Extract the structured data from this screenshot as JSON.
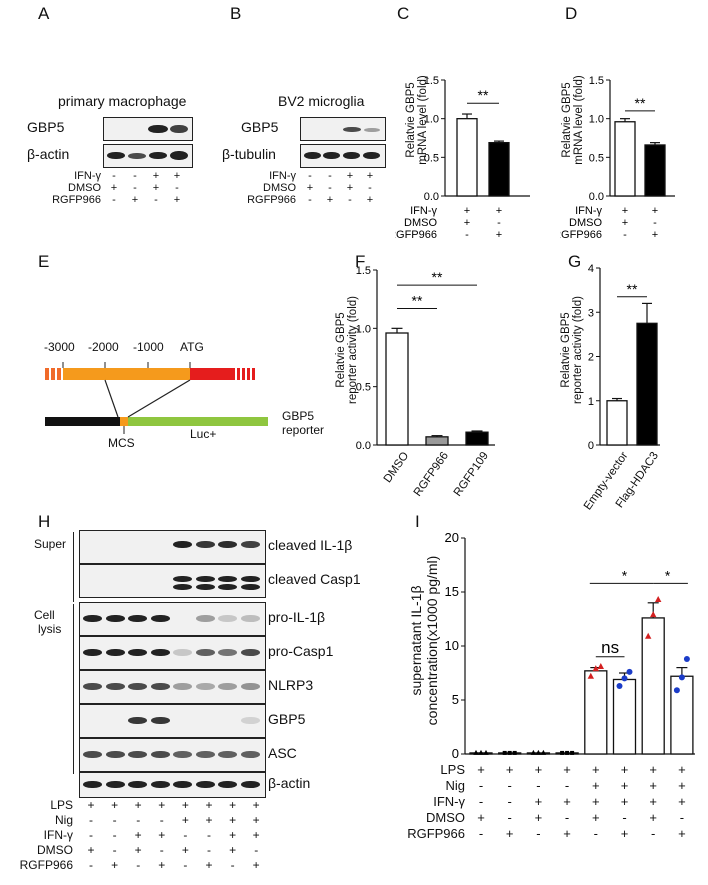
{
  "panel_labels": {
    "A": "A",
    "B": "B",
    "C": "C",
    "D": "D",
    "E": "E",
    "F": "F",
    "G": "G",
    "H": "H",
    "I": "I"
  },
  "panel_A": {
    "title": "primary macrophage",
    "blots": [
      "GBP5",
      "β-actin"
    ],
    "conditions": [
      {
        "label": "IFN-γ",
        "symbols": [
          "-",
          "-",
          "+",
          "+"
        ]
      },
      {
        "label": "DMSO",
        "symbols": [
          "+",
          "-",
          "+",
          "-"
        ]
      },
      {
        "label": "RGFP966",
        "symbols": [
          "-",
          "+",
          "-",
          "+"
        ]
      }
    ]
  },
  "panel_B": {
    "title": "BV2 microglia",
    "blots": [
      "GBP5",
      "β-tubulin"
    ],
    "conditions": [
      {
        "label": "IFN-γ",
        "symbols": [
          "-",
          "-",
          "+",
          "+"
        ]
      },
      {
        "label": "DMSO",
        "symbols": [
          "+",
          "-",
          "+",
          "-"
        ]
      },
      {
        "label": "RGFP966",
        "symbols": [
          "-",
          "+",
          "-",
          "+"
        ]
      }
    ]
  },
  "panel_E": {
    "positions": [
      "-3000",
      "-2000",
      "-1000",
      "ATG"
    ],
    "mcs": "MCS",
    "luc": "Luc+",
    "reporter_line1": "GBP5",
    "reporter_line2": "reporter"
  },
  "panel_H": {
    "super_label": "Super",
    "cell_label_1": "Cell",
    "cell_label_2": "lysis",
    "blots": [
      "cleaved IL-1β",
      "cleaved Casp1",
      "pro-IL-1β",
      "pro-Casp1",
      "NLRP3",
      "GBP5",
      "ASC",
      "β-actin"
    ],
    "conditions": [
      {
        "label": "LPS",
        "symbols": [
          "+",
          "+",
          "+",
          "+",
          "+",
          "+",
          "+",
          "+"
        ]
      },
      {
        "label": "Nig",
        "symbols": [
          "-",
          "-",
          "-",
          "-",
          "+",
          "+",
          "+",
          "+"
        ]
      },
      {
        "label": "IFN-γ",
        "symbols": [
          "-",
          "-",
          "+",
          "+",
          "-",
          "-",
          "+",
          "+"
        ]
      },
      {
        "label": "DMSO",
        "symbols": [
          "+",
          "-",
          "+",
          "-",
          "+",
          "-",
          "+",
          "-"
        ]
      },
      {
        "label": "RGFP966",
        "symbols": [
          "-",
          "+",
          "-",
          "+",
          "-",
          "+",
          "-",
          "+"
        ]
      }
    ]
  },
  "chart_data": [
    {
      "id": "C",
      "type": "bar",
      "ylabel_1": "Relatvie GBP5",
      "ylabel_2": "mRNA level (fold)",
      "ylim": [
        0,
        1.5
      ],
      "yticks": [
        "0.0",
        "0.5",
        "1.0",
        "1.5"
      ],
      "values": [
        1.0,
        0.69
      ],
      "errors": [
        0.06,
        0.02
      ],
      "fills": [
        "#ffffff",
        "#000000"
      ],
      "significance": "**",
      "conditions": [
        {
          "label": "IFN-γ",
          "symbols": [
            "+",
            "+"
          ]
        },
        {
          "label": "DMSO",
          "symbols": [
            "+",
            "-"
          ]
        },
        {
          "label": "RGFP966",
          "symbols": [
            "-",
            "+"
          ]
        }
      ]
    },
    {
      "id": "D",
      "type": "bar",
      "ylabel_1": "Relatvie GBP5",
      "ylabel_2": "mRNA level (fold)",
      "ylim": [
        0,
        1.5
      ],
      "yticks": [
        "0.0",
        "0.5",
        "1.0",
        "1.5"
      ],
      "values": [
        0.96,
        0.66
      ],
      "errors": [
        0.04,
        0.03
      ],
      "fills": [
        "#ffffff",
        "#000000"
      ],
      "significance": "**",
      "conditions": [
        {
          "label": "IFN-γ",
          "symbols": [
            "+",
            "+"
          ]
        },
        {
          "label": "DMSO",
          "symbols": [
            "+",
            "-"
          ]
        },
        {
          "label": "RGFP966",
          "symbols": [
            "-",
            "+"
          ]
        }
      ]
    },
    {
      "id": "F",
      "type": "bar",
      "ylabel_1": "Relatvie GBP5",
      "ylabel_2": "reporter activity (fold)",
      "ylim": [
        0,
        1.5
      ],
      "yticks": [
        "0.0",
        "0.5",
        "1.0",
        "1.5"
      ],
      "categories": [
        "DMSO",
        "RGFP966",
        "RGFP109"
      ],
      "values": [
        0.96,
        0.07,
        0.11
      ],
      "errors": [
        0.04,
        0.01,
        0.01
      ],
      "fills": [
        "#ffffff",
        "#9a9a9a",
        "#000000"
      ],
      "significance": [
        "**",
        "**"
      ]
    },
    {
      "id": "G",
      "type": "bar",
      "ylabel_1": "Relatvie GBP5",
      "ylabel_2": "reporter activity (fold)",
      "ylim": [
        0,
        4
      ],
      "yticks": [
        "0",
        "1",
        "2",
        "3",
        "4"
      ],
      "categories": [
        "Empty-vector",
        "Flag-HDAC3"
      ],
      "values": [
        1.0,
        2.75
      ],
      "errors": [
        0.05,
        0.45
      ],
      "fills": [
        "#ffffff",
        "#000000"
      ],
      "significance": "**"
    },
    {
      "id": "I",
      "type": "bar",
      "ylabel_1": "supernatant IL-1β",
      "ylabel_2": "concentration(x1000 pg/ml)",
      "ylim": [
        0,
        20
      ],
      "yticks": [
        "0",
        "5",
        "10",
        "15",
        "20"
      ],
      "values": [
        0.1,
        0.1,
        0.1,
        0.1,
        7.7,
        6.9,
        12.6,
        7.2
      ],
      "errors": [
        0,
        0,
        0,
        0,
        0.3,
        0.6,
        1.4,
        0.8
      ],
      "points": [
        [
          0.1,
          0.1,
          0.1
        ],
        [
          0.1,
          0.1,
          0.1
        ],
        [
          0.1,
          0.1,
          0.1
        ],
        [
          0.1,
          0.1,
          0.1
        ],
        [
          7.2,
          7.9,
          8.1
        ],
        [
          6.3,
          7.0,
          7.6
        ],
        [
          10.9,
          12.9,
          14.3
        ],
        [
          5.9,
          7.1,
          8.8
        ]
      ],
      "point_colors": [
        "#000000",
        "#000000",
        "#000000",
        "#000000",
        "#d42020",
        "#1b3cc8",
        "#d42020",
        "#1b3cc8"
      ],
      "annotations": [
        "ns",
        "*",
        "*"
      ],
      "conditions": [
        {
          "label": "LPS",
          "symbols": [
            "+",
            "+",
            "+",
            "+",
            "+",
            "+",
            "+",
            "+"
          ]
        },
        {
          "label": "Nig",
          "symbols": [
            "-",
            "-",
            "-",
            "-",
            "+",
            "+",
            "+",
            "+"
          ]
        },
        {
          "label": "IFN-γ",
          "symbols": [
            "-",
            "-",
            "+",
            "+",
            "+",
            "+",
            "+",
            "+"
          ]
        },
        {
          "label": "DMSO",
          "symbols": [
            "+",
            "-",
            "+",
            "-",
            "+",
            "-",
            "+",
            "-"
          ]
        },
        {
          "label": "RGFP966",
          "symbols": [
            "-",
            "+",
            "-",
            "+",
            "-",
            "+",
            "-",
            "+"
          ]
        }
      ]
    }
  ]
}
